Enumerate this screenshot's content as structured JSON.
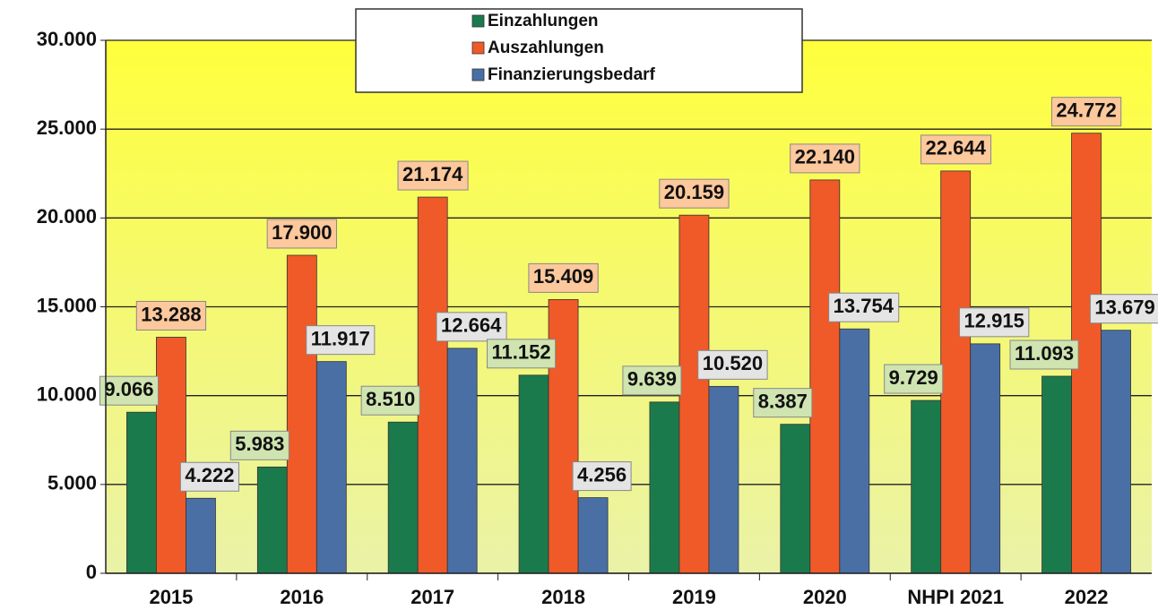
{
  "chart_data": {
    "type": "bar",
    "categories": [
      "2015",
      "2016",
      "2017",
      "2018",
      "2019",
      "2020",
      "NHPI 2021",
      "2022"
    ],
    "series": [
      {
        "name": "Einzahlungen",
        "color": "#1b7a4c",
        "label_color": "#cfe4b0",
        "values": [
          9066,
          5983,
          8510,
          11152,
          9639,
          8387,
          9729,
          11093
        ],
        "value_labels": [
          "9.066",
          "5.983",
          "8.510",
          "11.152",
          "9.639",
          "8.387",
          "9.729",
          "11.093"
        ]
      },
      {
        "name": "Auszahlungen",
        "color": "#f05a28",
        "label_color": "#fcc89c",
        "values": [
          13288,
          17900,
          21174,
          15409,
          20159,
          22140,
          22644,
          24772
        ],
        "value_labels": [
          "13.288",
          "17.900",
          "21.174",
          "15.409",
          "20.159",
          "22.140",
          "22.644",
          "24.772"
        ]
      },
      {
        "name": "Finanzierungsbedarf",
        "color": "#4a6fa5",
        "label_color": "#e4e4e4",
        "values": [
          4222,
          11917,
          12664,
          4256,
          10520,
          13754,
          12915,
          13679
        ],
        "value_labels": [
          "4.222",
          "11.917",
          "12.664",
          "4.256",
          "10.520",
          "13.754",
          "12.915",
          "13.679"
        ]
      }
    ],
    "ylim": [
      0,
      30000
    ],
    "yticks": [
      0,
      {
        "value": 5000,
        "label": "5.000"
      },
      {
        "value": 10000,
        "label": "10.000"
      },
      {
        "value": 15000,
        "label": "15.000"
      },
      {
        "value": 20000,
        "label": "20.000"
      },
      {
        "value": 25000,
        "label": "25.000"
      },
      {
        "value": 30000,
        "label": "30.000"
      }
    ],
    "grid": true
  }
}
